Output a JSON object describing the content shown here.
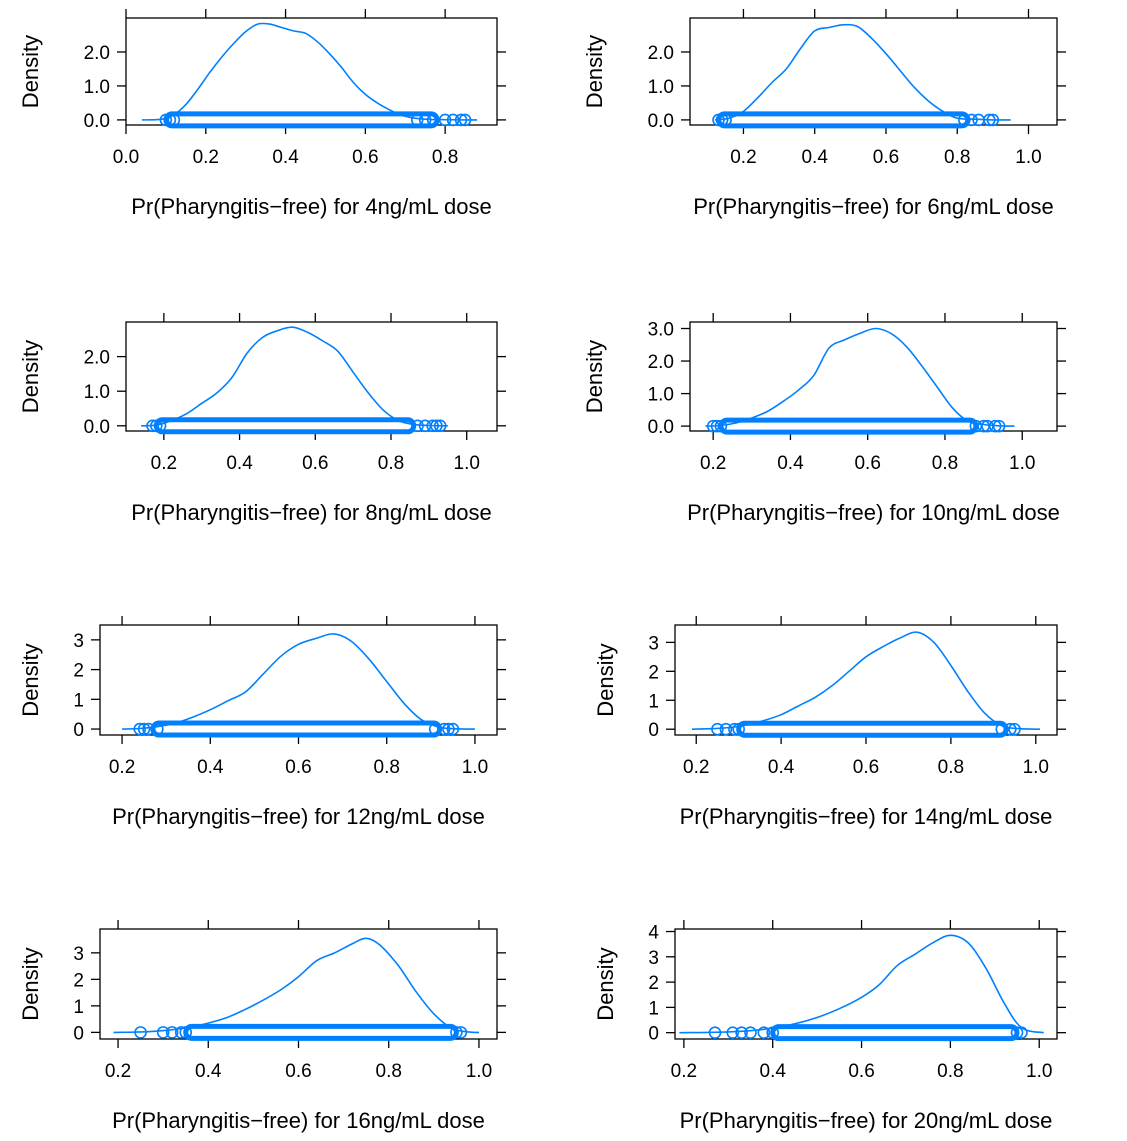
{
  "style": {
    "line_color": "#0080ff",
    "frame_color": "#000000",
    "background": "#ffffff"
  },
  "chart_data": [
    {
      "type": "density",
      "xlabel": "Pr(Pharyngitis−free) for 4ng/mL dose",
      "ylabel": "Density",
      "xlim": [
        0.0,
        0.93
      ],
      "ylim": [
        -0.15,
        3.0
      ],
      "xticks": [
        "0.0",
        "0.2",
        "0.4",
        "0.6",
        "0.8"
      ],
      "xtick_values": [
        0.0,
        0.2,
        0.4,
        0.6,
        0.8
      ],
      "yticks": [
        "0.0",
        "1.0",
        "2.0"
      ],
      "ytick_values": [
        0.0,
        1.0,
        2.0
      ],
      "curve": {
        "x": [
          0.04,
          0.09,
          0.12,
          0.15,
          0.18,
          0.21,
          0.24,
          0.27,
          0.3,
          0.33,
          0.36,
          0.39,
          0.42,
          0.45,
          0.48,
          0.51,
          0.54,
          0.57,
          0.6,
          0.63,
          0.66,
          0.69,
          0.72,
          0.75,
          0.78,
          0.85,
          0.88
        ],
        "y": [
          0.0,
          0.02,
          0.15,
          0.45,
          0.9,
          1.4,
          1.85,
          2.25,
          2.6,
          2.82,
          2.82,
          2.72,
          2.62,
          2.55,
          2.3,
          1.95,
          1.55,
          1.1,
          0.75,
          0.5,
          0.3,
          0.14,
          0.06,
          0.02,
          0.01,
          0.0,
          0.0
        ]
      },
      "rug_range": [
        0.1,
        0.78
      ],
      "points": [
        0.1,
        0.11,
        0.12,
        0.73,
        0.75,
        0.77,
        0.8,
        0.82,
        0.84,
        0.85
      ]
    },
    {
      "type": "density",
      "xlabel": "Pr(Pharyngitis−free) for 6ng/mL dose",
      "ylabel": "Density",
      "xlim": [
        0.05,
        1.08
      ],
      "ylim": [
        -0.15,
        3.0
      ],
      "xticks": [
        "0.2",
        "0.4",
        "0.6",
        "0.8",
        "1.0"
      ],
      "xtick_values": [
        0.2,
        0.4,
        0.6,
        0.8,
        1.0
      ],
      "yticks": [
        "0.0",
        "1.0",
        "2.0"
      ],
      "ytick_values": [
        0.0,
        1.0,
        2.0
      ],
      "curve": {
        "x": [
          0.12,
          0.16,
          0.2,
          0.24,
          0.28,
          0.32,
          0.36,
          0.4,
          0.44,
          0.48,
          0.52,
          0.56,
          0.6,
          0.64,
          0.68,
          0.72,
          0.76,
          0.8,
          0.85,
          0.9,
          0.95
        ],
        "y": [
          0.0,
          0.05,
          0.25,
          0.65,
          1.1,
          1.5,
          2.1,
          2.62,
          2.72,
          2.8,
          2.75,
          2.4,
          1.95,
          1.45,
          0.95,
          0.55,
          0.25,
          0.05,
          0.02,
          0.0,
          0.0
        ]
      },
      "rug_range": [
        0.13,
        0.83
      ],
      "points": [
        0.13,
        0.14,
        0.15,
        0.82,
        0.84,
        0.86,
        0.89,
        0.9
      ]
    },
    {
      "type": "density",
      "xlabel": "Pr(Pharyngitis−free) for 8ng/mL dose",
      "ylabel": "Density",
      "xlim": [
        0.1,
        1.08
      ],
      "ylim": [
        -0.15,
        3.0
      ],
      "xticks": [
        "0.2",
        "0.4",
        "0.6",
        "0.8",
        "1.0"
      ],
      "xtick_values": [
        0.2,
        0.4,
        0.6,
        0.8,
        1.0
      ],
      "yticks": [
        "0.0",
        "1.0",
        "2.0"
      ],
      "ytick_values": [
        0.0,
        1.0,
        2.0
      ],
      "curve": {
        "x": [
          0.14,
          0.18,
          0.22,
          0.26,
          0.3,
          0.34,
          0.38,
          0.42,
          0.46,
          0.5,
          0.54,
          0.58,
          0.62,
          0.66,
          0.7,
          0.74,
          0.78,
          0.82,
          0.86,
          0.9,
          0.95
        ],
        "y": [
          0.0,
          0.02,
          0.15,
          0.35,
          0.65,
          0.95,
          1.4,
          2.1,
          2.55,
          2.75,
          2.85,
          2.7,
          2.45,
          2.15,
          1.55,
          0.95,
          0.45,
          0.15,
          0.04,
          0.01,
          0.0
        ]
      },
      "rug_range": [
        0.18,
        0.86
      ],
      "points": [
        0.17,
        0.18,
        0.19,
        0.87,
        0.89,
        0.91,
        0.92,
        0.93
      ]
    },
    {
      "type": "density",
      "xlabel": "Pr(Pharyngitis−free) for 10ng/mL dose",
      "ylabel": "Density",
      "xlim": [
        0.14,
        1.09
      ],
      "ylim": [
        -0.15,
        3.2
      ],
      "xticks": [
        "0.2",
        "0.4",
        "0.6",
        "0.8",
        "1.0"
      ],
      "xtick_values": [
        0.2,
        0.4,
        0.6,
        0.8,
        1.0
      ],
      "yticks": [
        "0.0",
        "1.0",
        "2.0",
        "3.0"
      ],
      "ytick_values": [
        0.0,
        1.0,
        2.0,
        3.0
      ],
      "curve": {
        "x": [
          0.18,
          0.22,
          0.26,
          0.3,
          0.34,
          0.38,
          0.42,
          0.46,
          0.5,
          0.54,
          0.58,
          0.62,
          0.66,
          0.7,
          0.74,
          0.78,
          0.82,
          0.86,
          0.9,
          0.94,
          0.98
        ],
        "y": [
          0.0,
          0.02,
          0.1,
          0.25,
          0.45,
          0.75,
          1.1,
          1.55,
          2.4,
          2.65,
          2.85,
          3.0,
          2.85,
          2.45,
          1.85,
          1.2,
          0.55,
          0.15,
          0.05,
          0.01,
          0.0
        ]
      },
      "rug_range": [
        0.22,
        0.88
      ],
      "points": [
        0.2,
        0.21,
        0.22,
        0.88,
        0.9,
        0.91,
        0.93,
        0.94
      ]
    },
    {
      "type": "density",
      "xlabel": "Pr(Pharyngitis−free) for 12ng/mL dose",
      "ylabel": "Density",
      "xlim": [
        0.15,
        1.05
      ],
      "ylim": [
        -0.2,
        3.5
      ],
      "xticks": [
        "0.2",
        "0.4",
        "0.6",
        "0.8",
        "1.0"
      ],
      "xtick_values": [
        0.2,
        0.4,
        0.6,
        0.8,
        1.0
      ],
      "yticks": [
        "0",
        "1",
        "2",
        "3"
      ],
      "ytick_values": [
        0,
        1,
        2,
        3
      ],
      "curve": {
        "x": [
          0.2,
          0.24,
          0.28,
          0.32,
          0.36,
          0.4,
          0.44,
          0.48,
          0.52,
          0.56,
          0.6,
          0.64,
          0.68,
          0.72,
          0.76,
          0.8,
          0.84,
          0.88,
          0.92,
          0.96,
          1.0
        ],
        "y": [
          0.0,
          0.02,
          0.08,
          0.2,
          0.4,
          0.65,
          0.95,
          1.25,
          1.85,
          2.45,
          2.85,
          3.05,
          3.2,
          2.95,
          2.35,
          1.6,
          0.85,
          0.3,
          0.06,
          0.01,
          0.0
        ]
      },
      "rug_range": [
        0.27,
        0.92
      ],
      "points": [
        0.24,
        0.25,
        0.26,
        0.28,
        0.91,
        0.93,
        0.94,
        0.95
      ]
    },
    {
      "type": "density",
      "xlabel": "Pr(Pharyngitis−free) for 14ng/mL dose",
      "ylabel": "Density",
      "xlim": [
        0.15,
        1.05
      ],
      "ylim": [
        -0.2,
        3.6
      ],
      "xticks": [
        "0.2",
        "0.4",
        "0.6",
        "0.8",
        "1.0"
      ],
      "xtick_values": [
        0.2,
        0.4,
        0.6,
        0.8,
        1.0
      ],
      "yticks": [
        "0",
        "1",
        "2",
        "3"
      ],
      "ytick_values": [
        0,
        1,
        2,
        3
      ],
      "curve": {
        "x": [
          0.19,
          0.24,
          0.28,
          0.32,
          0.36,
          0.4,
          0.44,
          0.48,
          0.52,
          0.56,
          0.6,
          0.64,
          0.68,
          0.72,
          0.76,
          0.8,
          0.84,
          0.88,
          0.92,
          0.96,
          1.01
        ],
        "y": [
          0.0,
          0.02,
          0.06,
          0.15,
          0.3,
          0.5,
          0.8,
          1.1,
          1.5,
          2.0,
          2.5,
          2.85,
          3.15,
          3.35,
          3.0,
          2.2,
          1.3,
          0.55,
          0.12,
          0.02,
          0.0
        ]
      },
      "rug_range": [
        0.3,
        0.93
      ],
      "points": [
        0.25,
        0.27,
        0.29,
        0.3,
        0.92,
        0.94,
        0.95
      ]
    },
    {
      "type": "density",
      "xlabel": "Pr(Pharyngitis−free) for 16ng/mL dose",
      "ylabel": "Density",
      "xlim": [
        0.16,
        1.04
      ],
      "ylim": [
        -0.25,
        3.9
      ],
      "xticks": [
        "0.2",
        "0.4",
        "0.6",
        "0.8",
        "1.0"
      ],
      "xtick_values": [
        0.2,
        0.4,
        0.6,
        0.8,
        1.0
      ],
      "yticks": [
        "0",
        "1",
        "2",
        "3"
      ],
      "ytick_values": [
        0,
        1,
        2,
        3
      ],
      "curve": {
        "x": [
          0.19,
          0.24,
          0.28,
          0.32,
          0.36,
          0.4,
          0.44,
          0.48,
          0.52,
          0.56,
          0.6,
          0.64,
          0.68,
          0.72,
          0.75,
          0.78,
          0.82,
          0.86,
          0.9,
          0.94,
          0.98,
          1.0
        ],
        "y": [
          0.0,
          0.01,
          0.04,
          0.1,
          0.2,
          0.35,
          0.55,
          0.85,
          1.2,
          1.6,
          2.1,
          2.7,
          3.0,
          3.35,
          3.55,
          3.3,
          2.55,
          1.55,
          0.7,
          0.15,
          0.01,
          0.0
        ]
      },
      "rug_range": [
        0.35,
        0.95
      ],
      "points": [
        0.25,
        0.3,
        0.32,
        0.34,
        0.35,
        0.95,
        0.96
      ]
    },
    {
      "type": "density",
      "xlabel": "Pr(Pharyngitis−free) for 20ng/mL dose",
      "ylabel": "Density",
      "xlim": [
        0.18,
        1.04
      ],
      "ylim": [
        -0.25,
        4.1
      ],
      "xticks": [
        "0.2",
        "0.4",
        "0.6",
        "0.8",
        "1.0"
      ],
      "xtick_values": [
        0.2,
        0.4,
        0.6,
        0.8,
        1.0
      ],
      "yticks": [
        "0",
        "1",
        "2",
        "3",
        "4"
      ],
      "ytick_values": [
        0,
        1,
        2,
        3,
        4
      ],
      "curve": {
        "x": [
          0.19,
          0.25,
          0.3,
          0.35,
          0.4,
          0.45,
          0.5,
          0.55,
          0.6,
          0.64,
          0.68,
          0.72,
          0.76,
          0.8,
          0.84,
          0.88,
          0.92,
          0.96,
          1.01
        ],
        "y": [
          0.0,
          0.01,
          0.03,
          0.08,
          0.18,
          0.35,
          0.6,
          0.95,
          1.4,
          1.9,
          2.65,
          3.1,
          3.55,
          3.85,
          3.55,
          2.55,
          1.2,
          0.2,
          0.0
        ]
      },
      "rug_range": [
        0.4,
        0.95
      ],
      "points": [
        0.27,
        0.31,
        0.33,
        0.35,
        0.38,
        0.4,
        0.95,
        0.96
      ]
    }
  ]
}
